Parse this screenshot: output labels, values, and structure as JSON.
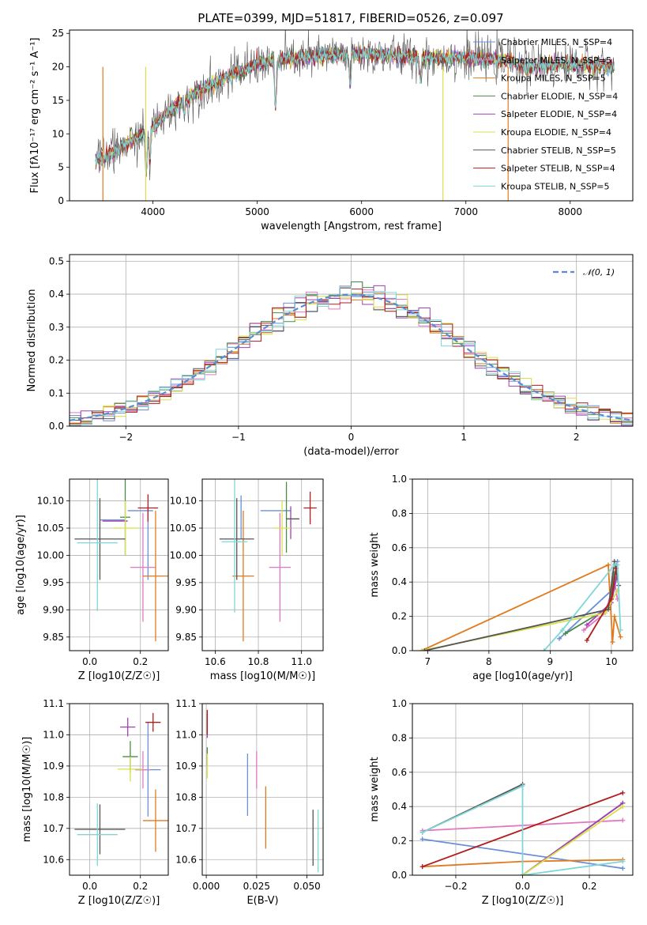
{
  "figure": {
    "title": "PLATE=0399, MJD=51817, FIBERID=0526, z=0.097"
  },
  "colors": {
    "Chabrier MILES": "#6a8fd8",
    "Salpeter MILES": "#e377c2",
    "Kroupa MILES": "#e07a1f",
    "Chabrier ELODIE": "#4a8a4a",
    "Salpeter ELODIE": "#a23fb5",
    "Kroupa ELODIE": "#d9e04a",
    "Chabrier STELIB": "#555555",
    "Salpeter STELIB": "#b21d1d",
    "Kroupa STELIB": "#7ed6d6",
    "normal": "#5b8bd4"
  },
  "chart_data": [
    {
      "id": "spectrum",
      "type": "line",
      "title": "PLATE=0399, MJD=51817, FIBERID=0526, z=0.097",
      "xlabel": "wavelength [Angstrom, rest frame]",
      "ylabel": "Flux [fλ10⁻¹⁷ erg cm⁻² s⁻¹ A⁻¹]",
      "xlim": [
        3200,
        8600
      ],
      "ylim": [
        0,
        25.5
      ],
      "xticks": [
        "4000",
        "5000",
        "6000",
        "7000",
        "8000"
      ],
      "yticks": [
        "0",
        "5",
        "10",
        "15",
        "20",
        "25"
      ],
      "legend": "upper right",
      "legend_entries": [
        "Chabrier MILES, N_SSP=4",
        "Salpeter MILES, N_SSP=5",
        "Kroupa MILES, N_SSP=5",
        "Chabrier ELODIE, N_SSP=4",
        "Salpeter ELODIE, N_SSP=4",
        "Kroupa ELODIE, N_SSP=4",
        "Chabrier STELIB, N_SSP=5",
        "Salpeter STELIB, N_SSP=4",
        "Kroupa STELIB, N_SSP=5"
      ],
      "continuum": {
        "x": [
          3450,
          3600,
          3800,
          4000,
          4200,
          4500,
          4800,
          5000,
          5200,
          5500,
          6000,
          6500,
          7000,
          7400,
          7600,
          8000,
          8400
        ],
        "y": [
          6,
          7,
          9,
          11,
          14,
          17,
          19,
          20.5,
          21,
          21.5,
          22,
          21.5,
          21.3,
          21,
          20,
          20.5,
          20
        ]
      },
      "absorption_lines": [
        {
          "x": 3935,
          "y": 4
        },
        {
          "x": 3970,
          "y": 6
        },
        {
          "x": 4300,
          "y": 13
        },
        {
          "x": 5175,
          "y": 14
        },
        {
          "x": 5890,
          "y": 17
        },
        {
          "x": 6563,
          "y": 18
        }
      ],
      "dropouts": [
        {
          "x": 3520,
          "color": "#e07a1f"
        },
        {
          "x": 3930,
          "color": "#d9e04a"
        },
        {
          "x": 6780,
          "color": "#d9e04a"
        },
        {
          "x": 7405,
          "color": "#e07a1f"
        }
      ]
    },
    {
      "id": "residuals",
      "type": "bar",
      "xlabel": "(data-model)/error",
      "ylabel": "Normed distribution",
      "xlim": [
        -2.5,
        2.5
      ],
      "ylim": [
        0,
        0.52
      ],
      "xticks": [
        "−2",
        "−1",
        "0",
        "1",
        "2"
      ],
      "yticks": [
        "0.0",
        "0.1",
        "0.2",
        "0.3",
        "0.4",
        "0.5"
      ],
      "legend_entries": [
        "𝒩(0, 1)"
      ],
      "legend": "upper right",
      "bins": [
        -2.5,
        2.5,
        50
      ]
    },
    {
      "id": "age-vs-z",
      "type": "scatter",
      "xlabel": "Z [log10(Z/Z☉)]",
      "ylabel": "age  [log10(age/yr)]",
      "xlim": [
        -0.08,
        0.31
      ],
      "ylim": [
        9.825,
        10.14
      ],
      "xticks": [
        "0.0",
        "0.2"
      ],
      "yticks": [
        "9.85",
        "9.90",
        "9.95",
        "10.00",
        "10.05",
        "10.10"
      ],
      "points": [
        {
          "s": "Chabrier MILES",
          "x": 0.2,
          "y": 10.082,
          "xe": 0.05,
          "ye": 0.0
        },
        {
          "s": "Chabrier MILES",
          "x": 0.09,
          "y": 10.065,
          "xe": 0.05,
          "ye": 0.0
        },
        {
          "s": "Chabrier MILES",
          "x": 0.23,
          "y": 10.02,
          "xe": 0.0,
          "ye": 0.065
        },
        {
          "s": "Salpeter MILES",
          "x": 0.21,
          "y": 9.978,
          "xe": 0.05,
          "ye": 0.1
        },
        {
          "s": "Kroupa MILES",
          "x": 0.26,
          "y": 9.962,
          "xe": 0.05,
          "ye": 0.12
        },
        {
          "s": "Chabrier ELODIE",
          "x": 0.14,
          "y": 10.07,
          "xe": 0.02,
          "ye": 0.07
        },
        {
          "s": "Salpeter ELODIE",
          "x": 0.1,
          "y": 10.063,
          "xe": 0.05,
          "ye": 0.0
        },
        {
          "s": "Kroupa ELODIE",
          "x": 0.14,
          "y": 10.05,
          "xe": 0.05,
          "ye": 0.05
        },
        {
          "s": "Chabrier STELIB",
          "x": 0.04,
          "y": 10.03,
          "xe": 0.1,
          "ye": 0.075
        },
        {
          "s": "Salpeter STELIB",
          "x": 0.23,
          "y": 10.087,
          "xe": 0.04,
          "ye": 0.025
        },
        {
          "s": "Kroupa STELIB",
          "x": 0.03,
          "y": 10.023,
          "xe": 0.08,
          "ye": 0.125
        }
      ]
    },
    {
      "id": "age-vs-mass",
      "type": "scatter",
      "xlabel": "mass [log10(M/M☉)]",
      "ylabel": "",
      "xlim": [
        10.54,
        11.1
      ],
      "ylim": [
        9.825,
        10.14
      ],
      "xticks": [
        "10.6",
        "10.8",
        "11.0"
      ],
      "yticks": [
        "9.85",
        "9.90",
        "9.95",
        "10.00",
        "10.05",
        "10.10"
      ],
      "points": [
        {
          "s": "Chabrier MILES",
          "x": 10.88,
          "y": 10.082,
          "xe": 0.07,
          "ye": 0.0
        },
        {
          "s": "Chabrier MILES",
          "x": 10.72,
          "y": 10.07,
          "xe": 0.0,
          "ye": 0.04
        },
        {
          "s": "Salpeter MILES",
          "x": 10.9,
          "y": 9.978,
          "xe": 0.05,
          "ye": 0.1
        },
        {
          "s": "Kroupa MILES",
          "x": 10.73,
          "y": 9.962,
          "xe": 0.05,
          "ye": 0.12
        },
        {
          "s": "Chabrier ELODIE",
          "x": 10.93,
          "y": 10.07,
          "xe": 0.0,
          "ye": 0.065
        },
        {
          "s": "Salpeter ELODIE",
          "x": 10.95,
          "y": 10.06,
          "xe": 0.0,
          "ye": 0.03
        },
        {
          "s": "Kroupa ELODIE",
          "x": 10.91,
          "y": 10.05,
          "xe": 0.04,
          "ye": 0.05
        },
        {
          "s": "Chabrier STELIB",
          "x": 10.7,
          "y": 10.03,
          "xe": 0.08,
          "ye": 0.075
        },
        {
          "s": "Chabrier STELIB",
          "x": 10.96,
          "y": 10.067,
          "xe": 0.03,
          "ye": 0.0
        },
        {
          "s": "Salpeter STELIB",
          "x": 11.04,
          "y": 10.087,
          "xe": 0.03,
          "ye": 0.03
        },
        {
          "s": "Kroupa STELIB",
          "x": 10.69,
          "y": 10.025,
          "xe": 0.06,
          "ye": 0.13
        }
      ]
    },
    {
      "id": "weight-vs-age",
      "type": "line",
      "xlabel": "age  [log10(age/yr)]",
      "ylabel": "mass weight",
      "xlim": [
        6.75,
        10.35
      ],
      "ylim": [
        0,
        1
      ],
      "xticks": [
        "7",
        "8",
        "9",
        "10"
      ],
      "yticks": [
        "0.0",
        "0.2",
        "0.4",
        "0.6",
        "0.8",
        "1.0"
      ],
      "series": [
        {
          "s": "Chabrier MILES",
          "x": [
            9.15,
            10.0,
            10.1
          ],
          "y": [
            0.07,
            0.35,
            0.52
          ]
        },
        {
          "s": "Salpeter MILES",
          "x": [
            9.55,
            9.9,
            10.05,
            10.1
          ],
          "y": [
            0.12,
            0.22,
            0.4,
            0.3
          ]
        },
        {
          "s": "Kroupa MILES",
          "x": [
            6.9,
            9.95,
            10.02,
            10.05,
            10.15
          ],
          "y": [
            0.0,
            0.5,
            0.05,
            0.2,
            0.08
          ]
        },
        {
          "s": "Chabrier ELODIE",
          "x": [
            9.25,
            9.95,
            10.05
          ],
          "y": [
            0.1,
            0.25,
            0.45
          ]
        },
        {
          "s": "Salpeter ELODIE",
          "x": [
            9.6,
            10.0,
            10.08
          ],
          "y": [
            0.15,
            0.28,
            0.42
          ]
        },
        {
          "s": "Kroupa ELODIE",
          "x": [
            6.9,
            9.9,
            10.1
          ],
          "y": [
            0.0,
            0.22,
            0.35
          ]
        },
        {
          "s": "Chabrier STELIB",
          "x": [
            6.95,
            9.95,
            10.05,
            10.12
          ],
          "y": [
            0.0,
            0.24,
            0.52,
            0.38
          ]
        },
        {
          "s": "Salpeter STELIB",
          "x": [
            9.6,
            10.0,
            10.08
          ],
          "y": [
            0.06,
            0.3,
            0.48
          ]
        },
        {
          "s": "Kroupa STELIB",
          "x": [
            8.9,
            9.2,
            10.05,
            10.1,
            10.15
          ],
          "y": [
            0.0,
            0.12,
            0.5,
            0.5,
            0.12
          ]
        }
      ]
    },
    {
      "id": "mass-vs-z",
      "type": "scatter",
      "xlabel": "Z [log10(Z/Z☉)]",
      "ylabel": "mass [log10(M/M☉)]",
      "xlim": [
        -0.08,
        0.31
      ],
      "ylim": [
        10.55,
        11.1
      ],
      "xticks": [
        "0.0",
        "0.2"
      ],
      "yticks": [
        "10.6",
        "10.7",
        "10.8",
        "10.9",
        "11.0",
        "11.1"
      ],
      "points": [
        {
          "s": "Chabrier MILES",
          "x": 0.23,
          "y": 10.888,
          "xe": 0.05,
          "ye": 0.15
        },
        {
          "s": "Salpeter MILES",
          "x": 0.21,
          "y": 10.888,
          "xe": 0.03,
          "ye": 0.06
        },
        {
          "s": "Kroupa MILES",
          "x": 0.26,
          "y": 10.725,
          "xe": 0.05,
          "ye": 0.1
        },
        {
          "s": "Chabrier ELODIE",
          "x": 0.16,
          "y": 10.93,
          "xe": 0.03,
          "ye": 0.05
        },
        {
          "s": "Salpeter ELODIE",
          "x": 0.15,
          "y": 11.025,
          "xe": 0.03,
          "ye": 0.03
        },
        {
          "s": "Kroupa ELODIE",
          "x": 0.16,
          "y": 10.89,
          "xe": 0.05,
          "ye": 0.04
        },
        {
          "s": "Chabrier STELIB",
          "x": 0.04,
          "y": 10.697,
          "xe": 0.1,
          "ye": 0.08
        },
        {
          "s": "Salpeter STELIB",
          "x": 0.25,
          "y": 11.04,
          "xe": 0.03,
          "ye": 0.03
        },
        {
          "s": "Kroupa STELIB",
          "x": 0.03,
          "y": 10.68,
          "xe": 0.08,
          "ye": 0.1
        }
      ]
    },
    {
      "id": "mass-vs-ebv",
      "type": "scatter",
      "xlabel": "E(B-V)",
      "ylabel": "",
      "xlim": [
        -0.002,
        0.058
      ],
      "ylim": [
        10.55,
        11.1
      ],
      "xticks": [
        "0.000",
        "0.025",
        "0.050"
      ],
      "yticks": [
        "10.6",
        "10.7",
        "10.8",
        "10.9",
        "11.0",
        "11.1"
      ],
      "points": [
        {
          "s": "Chabrier MILES",
          "x": 0.0205,
          "y": 10.84,
          "xe": 0.0,
          "ye": 0.1
        },
        {
          "s": "Salpeter MILES",
          "x": 0.025,
          "y": 10.888,
          "xe": 0.0,
          "ye": 0.06
        },
        {
          "s": "Kroupa MILES",
          "x": 0.0295,
          "y": 10.735,
          "xe": 0.0,
          "ye": 0.1
        },
        {
          "s": "Chabrier ELODIE",
          "x": 0.0005,
          "y": 10.93,
          "xe": 0.0,
          "ye": 0.03
        },
        {
          "s": "Salpeter ELODIE",
          "x": 0.0005,
          "y": 11.03,
          "xe": 0.0,
          "ye": 0.04
        },
        {
          "s": "Kroupa ELODIE",
          "x": 0.0005,
          "y": 10.9,
          "xe": 0.0,
          "ye": 0.04
        },
        {
          "s": "Chabrier STELIB",
          "x": 0.053,
          "y": 10.67,
          "xe": 0.0,
          "ye": 0.09
        },
        {
          "s": "Salpeter STELIB",
          "x": 0.0005,
          "y": 11.04,
          "xe": 0.0,
          "ye": 0.04
        },
        {
          "s": "Kroupa STELIB",
          "x": 0.0555,
          "y": 10.66,
          "xe": 0.0,
          "ye": 0.1
        }
      ]
    },
    {
      "id": "weight-vs-z",
      "type": "line",
      "xlabel": "Z [log10(Z/Z☉)]",
      "ylabel": "mass weight",
      "xlim": [
        -0.33,
        0.33
      ],
      "ylim": [
        0,
        1
      ],
      "xticks": [
        "−0.2",
        "0.0",
        "0.2"
      ],
      "yticks": [
        "0.0",
        "0.2",
        "0.4",
        "0.6",
        "0.8",
        "1.0"
      ],
      "series": [
        {
          "s": "Chabrier MILES",
          "x": [
            -0.3,
            0.3
          ],
          "y": [
            0.21,
            0.04
          ]
        },
        {
          "s": "Salpeter MILES",
          "x": [
            -0.3,
            0.3
          ],
          "y": [
            0.26,
            0.32
          ]
        },
        {
          "s": "Kroupa MILES",
          "x": [
            -0.3,
            0.0,
            0.3
          ],
          "y": [
            0.05,
            0.08,
            0.09
          ]
        },
        {
          "s": "Chabrier ELODIE",
          "x": [
            0.0,
            0.3
          ],
          "y": [
            0.0,
            0.42
          ]
        },
        {
          "s": "Salpeter ELODIE",
          "x": [
            0.0,
            0.3
          ],
          "y": [
            0.0,
            0.42
          ]
        },
        {
          "s": "Kroupa ELODIE",
          "x": [
            0.0,
            0.3
          ],
          "y": [
            0.0,
            0.4
          ]
        },
        {
          "s": "Chabrier STELIB",
          "x": [
            -0.3,
            0.0
          ],
          "y": [
            0.25,
            0.53
          ]
        },
        {
          "s": "Salpeter STELIB",
          "x": [
            -0.3,
            0.3
          ],
          "y": [
            0.05,
            0.48
          ]
        },
        {
          "s": "Kroupa STELIB",
          "x": [
            -0.3,
            0.0,
            0.0,
            0.3
          ],
          "y": [
            0.25,
            0.52,
            0.0,
            0.08
          ]
        }
      ]
    }
  ]
}
